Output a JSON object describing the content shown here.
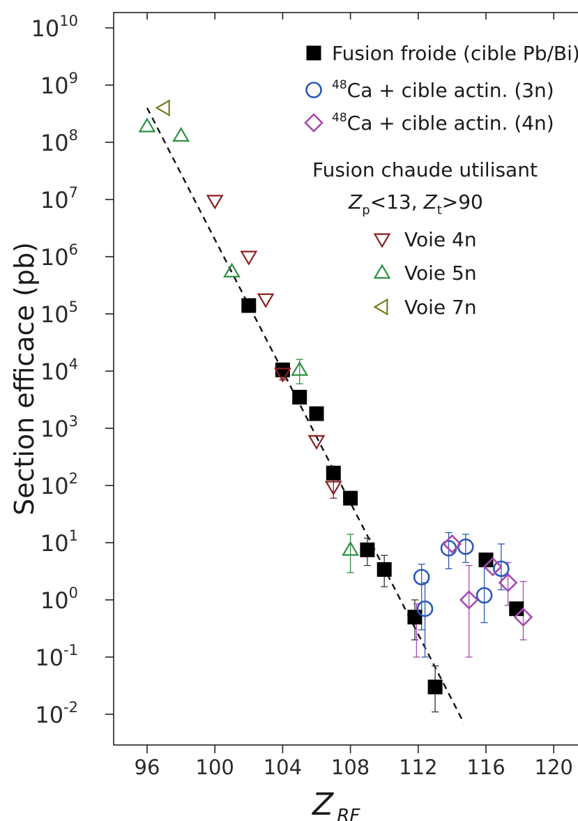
{
  "chart_data": {
    "type": "scatter",
    "xlabel": "Z",
    "xlabel_sub": "RF",
    "ylabel": "Section efficace (pb)",
    "xlim": [
      94,
      121
    ],
    "ylim": [
      0.003,
      20000000000
    ],
    "y_scale": "log",
    "grid": false,
    "legend_position": "top-right",
    "x_ticks": [
      96,
      100,
      104,
      108,
      112,
      116,
      120
    ],
    "y_ticks": [
      {
        "value": 10000000000.0,
        "base": "10",
        "exp": "10"
      },
      {
        "value": 1000000000.0,
        "base": "10",
        "exp": "9"
      },
      {
        "value": 100000000.0,
        "base": "10",
        "exp": "8"
      },
      {
        "value": 10000000.0,
        "base": "10",
        "exp": "7"
      },
      {
        "value": 1000000.0,
        "base": "10",
        "exp": "6"
      },
      {
        "value": 100000.0,
        "base": "10",
        "exp": "5"
      },
      {
        "value": 10000.0,
        "base": "10",
        "exp": "4"
      },
      {
        "value": 1000.0,
        "base": "10",
        "exp": "3"
      },
      {
        "value": 100.0,
        "base": "10",
        "exp": "2"
      },
      {
        "value": 10.0,
        "base": "10",
        "exp": "1"
      },
      {
        "value": 1,
        "base": "10",
        "exp": "0"
      },
      {
        "value": 0.1,
        "base": "10",
        "exp": "-1"
      },
      {
        "value": 0.01,
        "base": "10",
        "exp": "-2"
      }
    ],
    "fit_line": {
      "x": [
        96,
        114.7
      ],
      "y": [
        400000000,
        0.007
      ],
      "style": "dashed"
    },
    "series": [
      {
        "name": "Fusion froide (cible Pb/Bi)",
        "marker": "square-filled",
        "color": "#000000",
        "points": [
          {
            "x": 102,
            "y": 140000
          },
          {
            "x": 104,
            "y": 10500
          },
          {
            "x": 105,
            "y": 3500
          },
          {
            "x": 106,
            "y": 1800
          },
          {
            "x": 107,
            "y": 165
          },
          {
            "x": 108,
            "y": 60
          },
          {
            "x": 109,
            "y": 7.5
          },
          {
            "x": 110,
            "y": 3.4
          },
          {
            "x": 111.8,
            "y": 0.5
          },
          {
            "x": 113,
            "y": 0.03
          },
          {
            "x": 116,
            "y": 5
          },
          {
            "x": 117.8,
            "y": 0.7
          }
        ]
      },
      {
        "name": "Ca + cible actin. (3n)",
        "name_sup": "48",
        "marker": "circle-open",
        "color": "#2b59b5",
        "points": [
          {
            "x": 112.2,
            "y": 2.5
          },
          {
            "x": 112.4,
            "y": 0.7
          },
          {
            "x": 113.8,
            "y": 8
          },
          {
            "x": 114.8,
            "y": 8.5
          },
          {
            "x": 115.9,
            "y": 1.2
          },
          {
            "x": 116.9,
            "y": 3.5
          }
        ]
      },
      {
        "name": "Ca + cible actin. (4n)",
        "name_sup": "48",
        "marker": "diamond-open",
        "color": "#a64ab0",
        "points": [
          {
            "x": 114,
            "y": 9.5
          },
          {
            "x": 115,
            "y": 1
          },
          {
            "x": 116.4,
            "y": 3.8
          },
          {
            "x": 117.3,
            "y": 2
          },
          {
            "x": 118.2,
            "y": 0.5
          }
        ]
      },
      {
        "name": "Voie 4n",
        "marker": "triangle-down-open",
        "color": "#8b1f1f",
        "points": [
          {
            "x": 100,
            "y": 9500000
          },
          {
            "x": 102,
            "y": 1000000
          },
          {
            "x": 103,
            "y": 180000
          },
          {
            "x": 104,
            "y": 9000
          },
          {
            "x": 106,
            "y": 600
          },
          {
            "x": 107,
            "y": 95
          }
        ]
      },
      {
        "name": "Voie 5n",
        "marker": "triangle-up-open",
        "color": "#2a9140",
        "points": [
          {
            "x": 96,
            "y": 190000000
          },
          {
            "x": 98,
            "y": 130000000
          },
          {
            "x": 101,
            "y": 550000
          },
          {
            "x": 105,
            "y": 10500
          },
          {
            "x": 108,
            "y": 7.5
          }
        ]
      },
      {
        "name": "Voie 7n",
        "marker": "triangle-left-open",
        "color": "#7c7a22",
        "points": [
          {
            "x": 97,
            "y": 400000000
          }
        ]
      }
    ],
    "error_bars": [
      {
        "x": 104,
        "lo": 7000,
        "hi": 13000,
        "color": "#8b1f1f"
      },
      {
        "x": 105,
        "lo": 6000,
        "hi": 16000,
        "color": "#2a9140"
      },
      {
        "x": 107,
        "lo": 60,
        "hi": 150,
        "color": "#8b1f1f"
      },
      {
        "x": 108,
        "lo": 3,
        "hi": 14,
        "color": "#2a9140"
      },
      {
        "x": 109,
        "lo": 4,
        "hi": 12,
        "color": "#333333"
      },
      {
        "x": 110,
        "lo": 1.7,
        "hi": 6,
        "color": "#333333"
      },
      {
        "x": 111.8,
        "lo": 0.2,
        "hi": 1,
        "color": "#333333"
      },
      {
        "x": 111.9,
        "lo": 0.1,
        "hi": 0.85,
        "color": "#a64ab0"
      },
      {
        "x": 112.2,
        "lo": 0.3,
        "hi": 4.2,
        "color": "#2b59b5"
      },
      {
        "x": 112.4,
        "lo": 0.1,
        "hi": 2,
        "color": "#2b59b5"
      },
      {
        "x": 113,
        "lo": 0.011,
        "hi": 0.07,
        "color": "#333333"
      },
      {
        "x": 113.8,
        "lo": 3.5,
        "hi": 15,
        "color": "#2b59b5"
      },
      {
        "x": 114.8,
        "lo": 4.5,
        "hi": 14,
        "color": "#2b59b5"
      },
      {
        "x": 115,
        "lo": 0.1,
        "hi": 4,
        "color": "#a64ab0"
      },
      {
        "x": 115.9,
        "lo": 0.4,
        "hi": 6,
        "color": "#2b59b5"
      },
      {
        "x": 116.9,
        "lo": 1.5,
        "hi": 9.5,
        "color": "#2b59b5"
      },
      {
        "x": 117.3,
        "lo": 0.8,
        "hi": 4.5,
        "color": "#a64ab0"
      },
      {
        "x": 118.2,
        "lo": 0.2,
        "hi": 2.1,
        "color": "#a64ab0"
      }
    ],
    "legend": {
      "fusion_chaude_title": "Fusion chaude utilisant",
      "zp_label": "Z",
      "zp_sub": "p",
      "zp_rel": "<13, ",
      "zt_label": "Z",
      "zt_sub": "t",
      "zt_rel": ">90"
    }
  }
}
